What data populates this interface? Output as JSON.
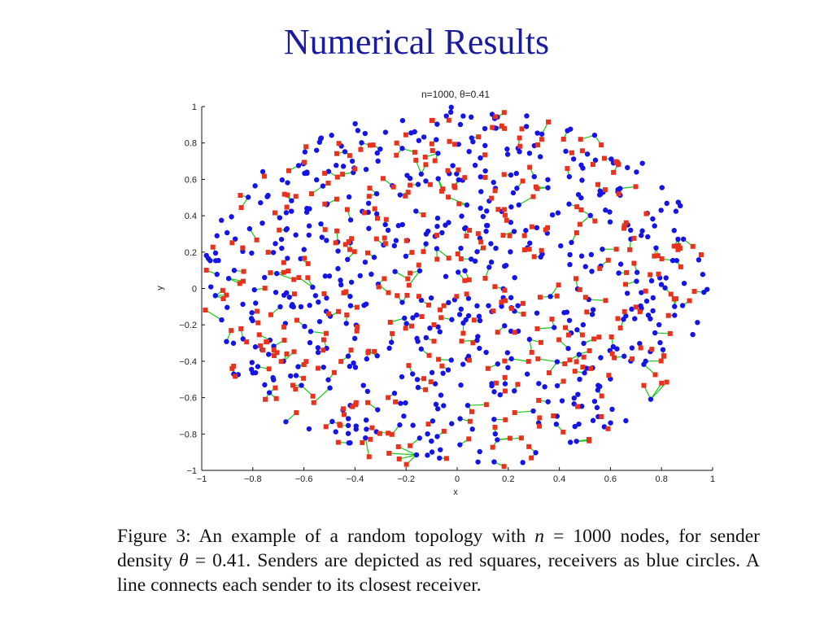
{
  "slide": {
    "title": "Numerical Results"
  },
  "chart_data": {
    "type": "scatter",
    "title": "n=1000, θ=0.41",
    "xlabel": "x",
    "ylabel": "y",
    "xlim": [
      -1,
      1
    ],
    "ylim": [
      -1,
      1
    ],
    "xticks": [
      "−1",
      "−0.8",
      "−0.6",
      "−0.4",
      "−0.2",
      "0",
      "0.2",
      "0.4",
      "0.6",
      "0.8",
      "1"
    ],
    "yticks": [
      "1",
      "0.8",
      "0.6",
      "0.4",
      "0.2",
      "0",
      "−0.2",
      "−0.4",
      "−0.6",
      "−0.8",
      "−1"
    ],
    "n": 1000,
    "theta": 0.41,
    "domain": "unit disk",
    "series": [
      {
        "role": "senders",
        "marker": "square",
        "color": "#e8321e"
      },
      {
        "role": "receivers",
        "marker": "circle",
        "color": "#1414e6"
      },
      {
        "role": "links",
        "marker": "line",
        "color": "#18c918"
      }
    ],
    "grid": false
  },
  "caption": {
    "part1": "Figure 3:  An example of a random topology with ",
    "n_symbol": "n",
    "part2": " = 1000 nodes, for sender density ",
    "theta_symbol": "θ",
    "part3": " = 0.41.  Senders are depicted as red squares, receivers as blue circles.  A line connects each sender to its closest receiver."
  }
}
